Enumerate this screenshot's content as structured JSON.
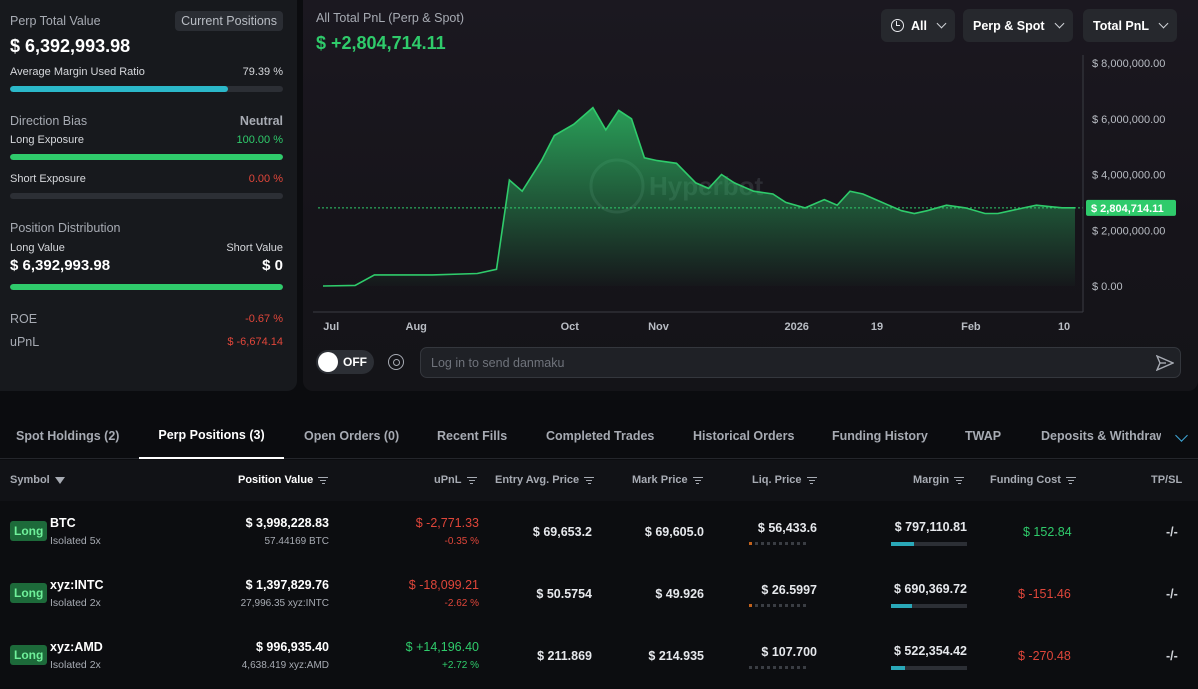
{
  "summary": {
    "perp_total_label": "Perp Total Value",
    "current_positions_btn": "Current Positions",
    "perp_total_value": "$ 6,392,993.98",
    "avg_margin_label": "Average Margin Used Ratio",
    "avg_margin_value": "79.39 %",
    "avg_margin_fill": 0.8,
    "direction_bias_label": "Direction Bias",
    "direction_bias_value": "Neutral",
    "long_exposure_label": "Long Exposure",
    "long_exposure_value": "100.00 %",
    "long_exposure_fill": 1.0,
    "short_exposure_label": "Short Exposure",
    "short_exposure_value": "0.00 %",
    "short_exposure_fill": 0.0,
    "position_dist_label": "Position Distribution",
    "long_value_label": "Long Value",
    "short_value_label": "Short Value",
    "long_value": "$ 6,392,993.98",
    "short_value": "$ 0",
    "roe_label": "ROE",
    "roe_value": "-0.67 %",
    "upnl_label": "uPnL",
    "upnl_value": "$ -6,674.14"
  },
  "chart_panel": {
    "title": "All Total PnL (Perp & Spot)",
    "total": "$ +2,804,714.11",
    "controls": {
      "range": "All",
      "scope": "Perp & Spot",
      "metric": "Total PnL"
    },
    "current_label": "$ 2,804,714.11",
    "toggle_label": "OFF",
    "danmaku_placeholder": "Log in to send danmaku",
    "watermark": "Hyperbot"
  },
  "chart_data": {
    "type": "area",
    "title": "",
    "xlabel": "",
    "ylabel": "",
    "ylim": [
      0,
      8000000
    ],
    "y_ticks": [
      "$ 8,000,000.00",
      "$ 6,000,000.00",
      "$ 4,000,000.00",
      "$ 2,000,000.00",
      "$ 0.00"
    ],
    "y_tick_values": [
      8000000,
      6000000,
      4000000,
      2000000,
      0
    ],
    "x_ticks": [
      "Jul",
      "Aug",
      "Oct",
      "Nov",
      "2026",
      "19",
      "Feb",
      "10"
    ],
    "x_tick_positions": [
      0.04,
      14.5,
      38.4,
      52.2,
      73.7,
      86.2,
      100.8,
      115.3
    ],
    "xlim": [
      0,
      117
    ],
    "current_value": 2804714.11,
    "series": [
      {
        "x": [
          0,
          5,
          8,
          12,
          17,
          24,
          27,
          29,
          31,
          34,
          36,
          39,
          42,
          44,
          46,
          48,
          50,
          52,
          55,
          58,
          60,
          62,
          64,
          67,
          70,
          72,
          75,
          78,
          80,
          82,
          84,
          86,
          88,
          90,
          92,
          94,
          97,
          100,
          103,
          105,
          107,
          109,
          111,
          113,
          115,
          117
        ],
        "y": [
          0,
          20000,
          400000,
          400000,
          400000,
          450000,
          600000,
          3800000,
          3400000,
          4500000,
          5400000,
          5800000,
          6400000,
          5600000,
          6300000,
          6000000,
          4600000,
          4500000,
          4400000,
          3700000,
          3500000,
          4000000,
          3700000,
          3400000,
          3300000,
          3000000,
          2800000,
          3100000,
          2900000,
          3400000,
          3300000,
          3100000,
          2900000,
          2700000,
          2600000,
          2700000,
          2900000,
          2800000,
          2600000,
          2600000,
          2700000,
          2800000,
          2900000,
          2850000,
          2804714,
          2804714
        ]
      }
    ]
  },
  "tabs": [
    "Spot Holdings (2)",
    "Perp Positions (3)",
    "Open Orders (0)",
    "Recent Fills",
    "Completed Trades",
    "Historical Orders",
    "Funding History",
    "TWAP",
    "Deposits & Withdraw"
  ],
  "table": {
    "headers": {
      "symbol": "Symbol",
      "position_value": "Position Value",
      "upnl": "uPnL",
      "entry": "Entry Avg. Price",
      "mark": "Mark Price",
      "liq": "Liq. Price",
      "margin": "Margin",
      "funding": "Funding Cost",
      "tpsl": "TP/SL"
    },
    "rows": [
      {
        "side": "Long",
        "symbol": "BTC",
        "mode": "Isolated 5x",
        "position_value": "$ 3,998,228.83",
        "size": "57.44169 BTC",
        "upnl": "$ -2,771.33",
        "upnl_pct": "-0.35 %",
        "entry": "$ 69,653.2",
        "mark": "$ 69,605.0",
        "liq": "$ 56,433.6",
        "liq_level": 0.1,
        "margin": "$ 797,110.81",
        "margin_fill": 0.3,
        "funding": "$ 152.84",
        "tpsl": "-/-"
      },
      {
        "side": "Long",
        "symbol": "xyz:INTC",
        "mode": "Isolated 2x",
        "position_value": "$ 1,397,829.76",
        "size": "27,996.35 xyz:INTC",
        "upnl": "$ -18,099.21",
        "upnl_pct": "-2.62 %",
        "entry": "$ 50.5754",
        "mark": "$ 49.926",
        "liq": "$ 26.5997",
        "liq_level": 0.1,
        "margin": "$ 690,369.72",
        "margin_fill": 0.27,
        "funding": "$ -151.46",
        "tpsl": "-/-"
      },
      {
        "side": "Long",
        "symbol": "xyz:AMD",
        "mode": "Isolated 2x",
        "position_value": "$ 996,935.40",
        "size": "4,638.419 xyz:AMD",
        "upnl": "$ +14,196.40",
        "upnl_pct": "+2.72 %",
        "entry": "$ 211.869",
        "mark": "$ 214.935",
        "liq": "$ 107.700",
        "liq_level": 0.0,
        "margin": "$ 522,354.42",
        "margin_fill": 0.19,
        "funding": "$ -270.48",
        "tpsl": "-/-"
      }
    ]
  },
  "colors": {
    "accent_green": "#2fcb6b",
    "negative_red": "#e0463a",
    "margin_teal": "#2aa8b8",
    "bg": "#0b0c0f"
  }
}
